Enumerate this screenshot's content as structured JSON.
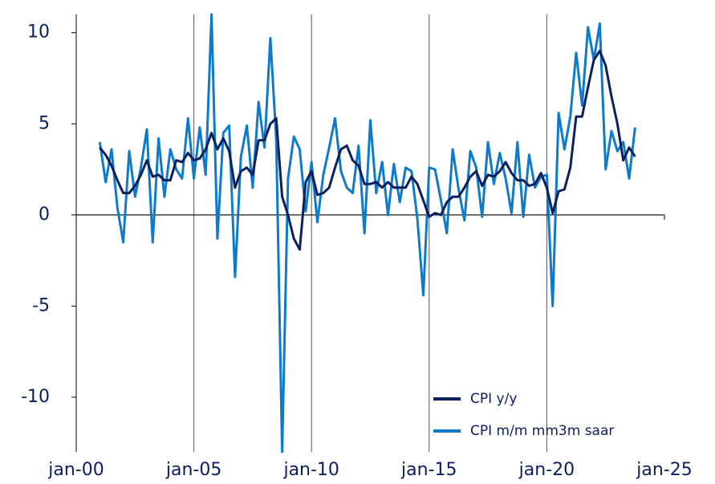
{
  "chart_data": {
    "type": "line",
    "x": [
      2001.0,
      2001.25,
      2001.5,
      2001.75,
      2002.0,
      2002.25,
      2002.5,
      2002.75,
      2003.0,
      2003.25,
      2003.5,
      2003.75,
      2004.0,
      2004.25,
      2004.5,
      2004.75,
      2005.0,
      2005.25,
      2005.5,
      2005.75,
      2006.0,
      2006.25,
      2006.5,
      2006.75,
      2007.0,
      2007.25,
      2007.5,
      2007.75,
      2008.0,
      2008.25,
      2008.5,
      2008.75,
      2009.0,
      2009.25,
      2009.5,
      2009.75,
      2010.0,
      2010.25,
      2010.5,
      2010.75,
      2011.0,
      2011.25,
      2011.5,
      2011.75,
      2012.0,
      2012.25,
      2012.5,
      2012.75,
      2013.0,
      2013.25,
      2013.5,
      2013.75,
      2014.0,
      2014.25,
      2014.5,
      2014.75,
      2015.0,
      2015.25,
      2015.5,
      2015.75,
      2016.0,
      2016.25,
      2016.5,
      2016.75,
      2017.0,
      2017.25,
      2017.5,
      2017.75,
      2018.0,
      2018.25,
      2018.5,
      2018.75,
      2019.0,
      2019.25,
      2019.5,
      2019.75,
      2020.0,
      2020.25,
      2020.5,
      2020.75,
      2021.0,
      2021.25,
      2021.5,
      2021.75,
      2022.0,
      2022.25,
      2022.5,
      2022.75,
      2023.0,
      2023.25,
      2023.5,
      2023.75
    ],
    "series": [
      {
        "name": "CPI y/y",
        "color": "#0b1f5c",
        "values": [
          3.7,
          3.3,
          2.7,
          1.9,
          1.2,
          1.2,
          1.6,
          2.2,
          3.0,
          2.1,
          2.2,
          1.9,
          1.9,
          3.0,
          2.9,
          3.4,
          3.0,
          3.1,
          3.6,
          4.5,
          3.6,
          4.2,
          3.5,
          1.5,
          2.4,
          2.6,
          2.2,
          4.1,
          4.1,
          5.0,
          5.3,
          1.0,
          0.0,
          -1.3,
          -1.9,
          1.8,
          2.4,
          1.1,
          1.2,
          1.5,
          2.6,
          3.6,
          3.8,
          3.0,
          2.7,
          1.7,
          1.7,
          1.8,
          1.5,
          1.8,
          1.5,
          1.5,
          1.5,
          2.1,
          1.7,
          0.8,
          -0.1,
          0.1,
          0.0,
          0.7,
          1.0,
          1.0,
          1.5,
          2.1,
          2.4,
          1.6,
          2.2,
          2.1,
          2.4,
          2.9,
          2.3,
          1.9,
          1.9,
          1.6,
          1.7,
          2.3,
          1.5,
          0.1,
          1.3,
          1.4,
          2.6,
          5.4,
          5.4,
          7.0,
          8.5,
          9.0,
          8.2,
          6.5,
          5.0,
          3.0,
          3.7,
          3.2
        ]
      },
      {
        "name": "CPI m/m mm3m saar",
        "color": "#0e7acb",
        "values": [
          4.0,
          1.8,
          3.6,
          0.4,
          -1.5,
          3.5,
          1.0,
          2.6,
          4.7,
          -1.5,
          4.2,
          1.0,
          3.6,
          2.5,
          2.0,
          5.3,
          2.0,
          4.8,
          2.2,
          11.0,
          -1.3,
          4.5,
          4.9,
          -3.4,
          3.2,
          4.9,
          1.5,
          6.2,
          3.7,
          9.7,
          4.2,
          -13.0,
          2.0,
          4.3,
          3.6,
          0.2,
          2.9,
          -0.4,
          2.2,
          3.7,
          5.3,
          2.4,
          1.5,
          1.2,
          3.8,
          -1.0,
          5.2,
          1.2,
          2.9,
          0.0,
          2.8,
          0.7,
          2.6,
          2.4,
          -0.2,
          -4.4,
          2.6,
          2.5,
          0.8,
          -1.0,
          3.6,
          1.4,
          -0.3,
          3.5,
          2.6,
          -0.1,
          4.0,
          1.7,
          3.4,
          2.0,
          0.1,
          4.0,
          -0.1,
          3.3,
          1.5,
          2.1,
          2.2,
          -5.0,
          5.6,
          3.6,
          5.4,
          8.9,
          6.0,
          10.3,
          8.5,
          10.5,
          2.5,
          4.6,
          3.5,
          4.0,
          2.0,
          4.8
        ]
      }
    ],
    "xlim": [
      2000,
      2025
    ],
    "xticks": [
      {
        "value": 2000,
        "label": "jan-00"
      },
      {
        "value": 2005,
        "label": "jan-05"
      },
      {
        "value": 2010,
        "label": "jan-10"
      },
      {
        "value": 2015,
        "label": "jan-15"
      },
      {
        "value": 2020,
        "label": "jan-20"
      },
      {
        "value": 2025,
        "label": "jan-25"
      }
    ],
    "ylim": [
      -13,
      11
    ],
    "yticks": [
      -10,
      -5,
      0,
      5,
      10
    ],
    "legend": "lower right"
  }
}
